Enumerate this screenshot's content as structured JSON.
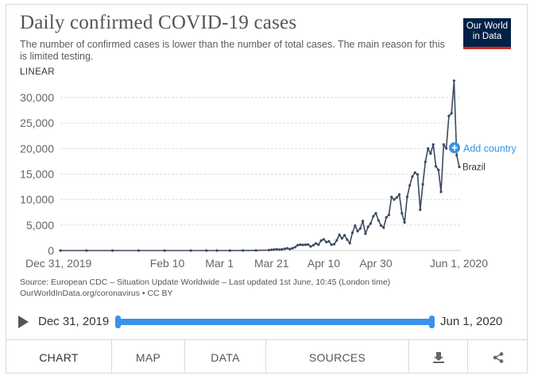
{
  "header": {
    "title": "Daily confirmed COVID-19 cases",
    "subtitle": "The number of confirmed cases is lower than the number of total cases. The main reason for this is limited testing.",
    "logo_line1": "Our World",
    "logo_line2": "in Data",
    "scale_label": "LINEAR"
  },
  "source": {
    "line1": "Source: European CDC – Situation Update Worldwide – Last updated 1st June, 10:45 (London time)",
    "line2": "OurWorldInData.org/coronavirus • CC BY"
  },
  "timeline": {
    "start_label": "Dec 31, 2019",
    "end_label": "Jun 1, 2020"
  },
  "tabs": {
    "chart": "CHART",
    "map": "MAP",
    "data": "DATA",
    "sources": "SOURCES"
  },
  "colors": {
    "line": "#3c4a5e",
    "accent": "#3b93e8",
    "grid": "#dddddd"
  },
  "chart_data": {
    "type": "line",
    "title": "Daily confirmed COVID-19 cases",
    "xlabel": "",
    "ylabel": "",
    "ylim": [
      0,
      33000
    ],
    "xlim_day": [
      0,
      153
    ],
    "y_ticks": [
      0,
      5000,
      10000,
      15000,
      20000,
      25000,
      30000
    ],
    "y_tick_labels": [
      "0",
      "5,000",
      "10,000",
      "15,000",
      "20,000",
      "25,000",
      "30,000"
    ],
    "x_ticks": [
      {
        "day": 0,
        "label": "Dec 31, 2019"
      },
      {
        "day": 41,
        "label": "Feb 10"
      },
      {
        "day": 61,
        "label": "Mar 1"
      },
      {
        "day": 81,
        "label": "Mar 21"
      },
      {
        "day": 101,
        "label": "Apr 10"
      },
      {
        "day": 121,
        "label": "Apr 30"
      },
      {
        "day": 153,
        "label": "Jun 1, 2020"
      }
    ],
    "add_country_label": "Add country",
    "series": [
      {
        "name": "Brazil",
        "x": [
          0,
          10,
          20,
          30,
          40,
          50,
          56,
          60,
          65,
          70,
          75,
          80,
          81,
          82,
          83,
          84,
          85,
          86,
          87,
          88,
          89,
          90,
          91,
          92,
          93,
          94,
          95,
          96,
          97,
          98,
          99,
          100,
          101,
          102,
          103,
          104,
          105,
          106,
          107,
          108,
          109,
          110,
          111,
          112,
          113,
          114,
          115,
          116,
          117,
          118,
          119,
          120,
          121,
          122,
          123,
          124,
          125,
          126,
          127,
          128,
          129,
          130,
          131,
          132,
          133,
          134,
          135,
          136,
          137,
          138,
          139,
          140,
          141,
          142,
          143,
          144,
          145,
          146,
          147,
          148,
          149,
          150,
          151,
          152,
          153
        ],
        "values": [
          0,
          0,
          0,
          0,
          0,
          0,
          0,
          1,
          3,
          10,
          30,
          100,
          150,
          200,
          250,
          180,
          230,
          330,
          450,
          300,
          450,
          650,
          1050,
          1150,
          1100,
          1150,
          1200,
          800,
          1050,
          1400,
          1150,
          1950,
          2200,
          1650,
          1800,
          1150,
          1250,
          2000,
          3100,
          2400,
          3000,
          2150,
          1450,
          3500,
          4900,
          3800,
          4300,
          5800,
          3300,
          4650,
          5300,
          6700,
          7300,
          5900,
          4900,
          4500,
          6500,
          7000,
          10500,
          10000,
          10400,
          11000,
          7300,
          5500,
          10500,
          12800,
          14500,
          15300,
          14900,
          8000,
          13000,
          17400,
          20000,
          19000,
          20800,
          16500,
          15800,
          11500,
          20800,
          20000,
          26400,
          26900,
          33300,
          18700,
          16400
        ]
      }
    ]
  }
}
